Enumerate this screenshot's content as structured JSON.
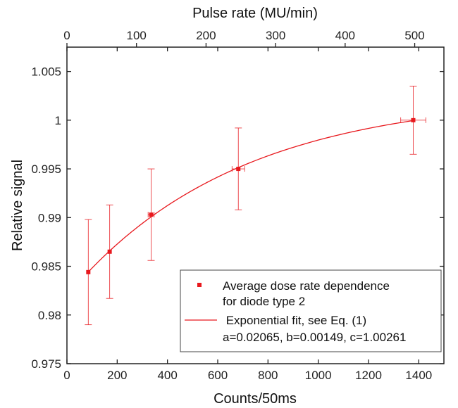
{
  "chart_data": {
    "type": "scatter",
    "xlabel": "Counts/50ms",
    "ylabel": "Relative signal",
    "x2label": "Pulse rate (MU/min)",
    "xlim": [
      0,
      1500
    ],
    "ylim": [
      0.975,
      1.0075
    ],
    "x2lim": [
      0,
      542
    ],
    "xticks": [
      0,
      200,
      400,
      600,
      800,
      1000,
      1200,
      1400
    ],
    "xtick_labels": [
      "0",
      "200",
      "400",
      "600",
      "800",
      "1000",
      "1200",
      "1400"
    ],
    "yticks": [
      0.975,
      0.98,
      0.985,
      0.99,
      0.995,
      1.0,
      1.005
    ],
    "ytick_labels": [
      "0.975",
      "0.98",
      "0.985",
      "0.99",
      "0.995",
      "1",
      "1.005"
    ],
    "x2ticks": [
      0,
      100,
      200,
      300,
      400,
      500
    ],
    "x2tick_labels": [
      "0",
      "100",
      "200",
      "300",
      "400",
      "500"
    ],
    "grid": false,
    "legend_position": "bottom-right",
    "color": "#e8191e",
    "series": [
      {
        "name": "Average dose rate dependence\nfor diode type 2",
        "kind": "points",
        "x": [
          85,
          170,
          335,
          682,
          1378
        ],
        "y": [
          0.9844,
          0.9865,
          0.9903,
          0.995,
          1.0
        ],
        "y_error": [
          0.0054,
          0.0048,
          0.0047,
          0.0042,
          0.0035
        ],
        "x_error": [
          0,
          0,
          12,
          25,
          50
        ]
      },
      {
        "name": " Exponential fit, see Eq. (1)\na=0.02065, b=0.00149, c=1.00261",
        "kind": "fit",
        "model": "c - a*exp(-b*x)",
        "params": {
          "a": 0.02065,
          "b": 0.00149,
          "c": 1.00261
        },
        "x_range": [
          85,
          1378
        ]
      }
    ]
  }
}
